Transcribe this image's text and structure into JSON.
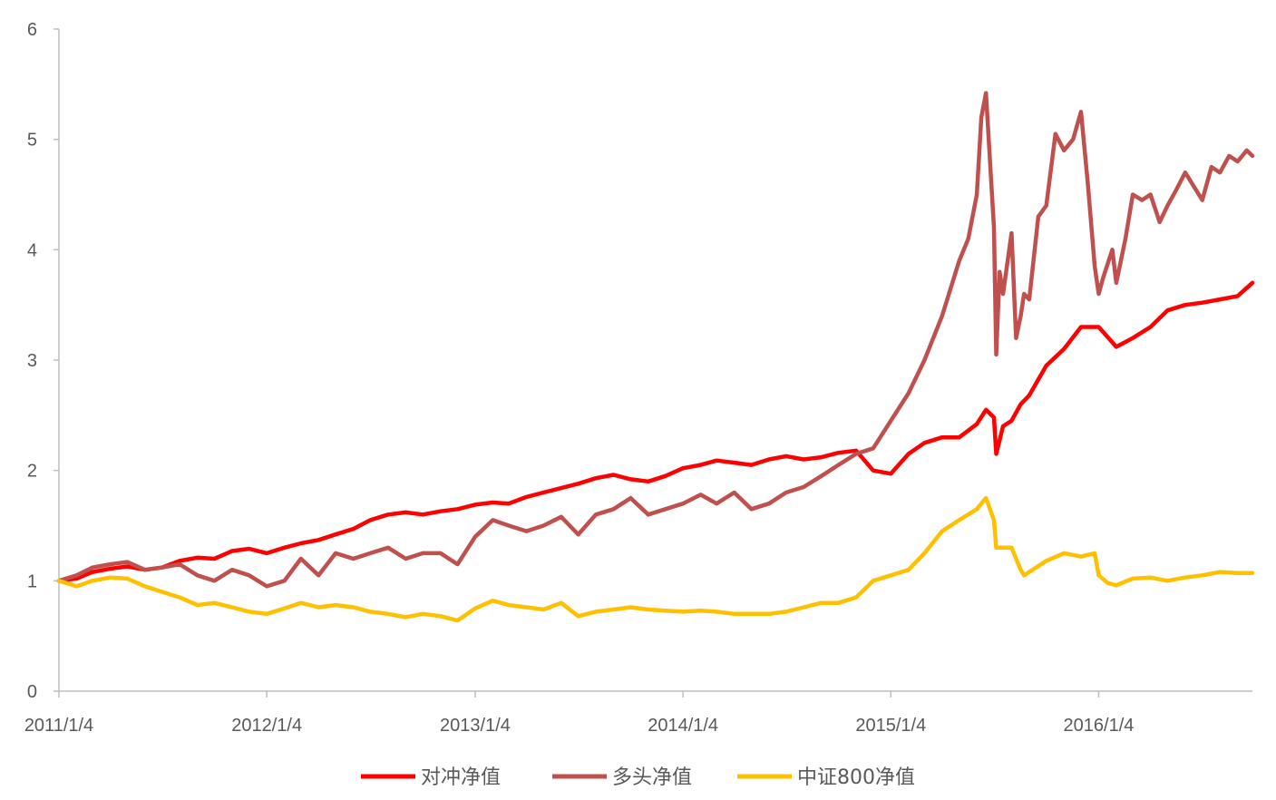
{
  "chart_data": {
    "type": "line",
    "title": "",
    "xlabel": "",
    "ylabel": "",
    "ylim": [
      0,
      6
    ],
    "yticks": [
      0,
      1,
      2,
      3,
      4,
      5,
      6
    ],
    "xlim": [
      "2011-01-04",
      "2016-09-30"
    ],
    "xtick_labels": [
      "2011/1/4",
      "2012/1/4",
      "2013/1/4",
      "2014/1/4",
      "2015/1/4",
      "2016/1/4"
    ],
    "xtick_dates": [
      "2011-01-04",
      "2012-01-04",
      "2013-01-04",
      "2014-01-04",
      "2015-01-04",
      "2016-01-04"
    ],
    "grid": false,
    "legend_position": "bottom",
    "series": [
      {
        "name": "对冲净值",
        "color": "#ff0000",
        "x": [
          "2011-01-04",
          "2011-02-04",
          "2011-03-04",
          "2011-04-04",
          "2011-05-04",
          "2011-06-04",
          "2011-07-04",
          "2011-08-04",
          "2011-09-04",
          "2011-10-04",
          "2011-11-04",
          "2011-12-04",
          "2012-01-04",
          "2012-02-04",
          "2012-03-04",
          "2012-04-04",
          "2012-05-04",
          "2012-06-04",
          "2012-07-04",
          "2012-08-04",
          "2012-09-04",
          "2012-10-04",
          "2012-11-04",
          "2012-12-04",
          "2013-01-04",
          "2013-02-04",
          "2013-03-04",
          "2013-04-04",
          "2013-05-04",
          "2013-06-04",
          "2013-07-04",
          "2013-08-04",
          "2013-09-04",
          "2013-10-04",
          "2013-11-04",
          "2013-12-04",
          "2014-01-04",
          "2014-02-04",
          "2014-03-04",
          "2014-04-04",
          "2014-05-04",
          "2014-06-04",
          "2014-07-04",
          "2014-08-04",
          "2014-09-04",
          "2014-10-04",
          "2014-11-04",
          "2014-12-04",
          "2015-01-04",
          "2015-02-04",
          "2015-03-04",
          "2015-04-04",
          "2015-05-04",
          "2015-06-04",
          "2015-06-20",
          "2015-07-04",
          "2015-07-08",
          "2015-07-20",
          "2015-08-04",
          "2015-08-20",
          "2015-09-04",
          "2015-10-04",
          "2015-11-04",
          "2015-12-04",
          "2016-01-04",
          "2016-02-04",
          "2016-03-04",
          "2016-04-04",
          "2016-05-04",
          "2016-06-04",
          "2016-07-04",
          "2016-08-04",
          "2016-09-04",
          "2016-09-30"
        ],
        "values": [
          1.0,
          1.02,
          1.08,
          1.11,
          1.13,
          1.1,
          1.12,
          1.18,
          1.21,
          1.2,
          1.27,
          1.29,
          1.25,
          1.3,
          1.34,
          1.37,
          1.42,
          1.47,
          1.55,
          1.6,
          1.62,
          1.6,
          1.63,
          1.65,
          1.69,
          1.71,
          1.7,
          1.76,
          1.8,
          1.84,
          1.88,
          1.93,
          1.96,
          1.92,
          1.9,
          1.95,
          2.02,
          2.05,
          2.09,
          2.07,
          2.05,
          2.1,
          2.13,
          2.1,
          2.12,
          2.16,
          2.18,
          2.0,
          1.97,
          2.15,
          2.25,
          2.3,
          2.3,
          2.42,
          2.55,
          2.48,
          2.15,
          2.4,
          2.45,
          2.6,
          2.68,
          2.95,
          3.1,
          3.3,
          3.3,
          3.12,
          3.2,
          3.3,
          3.45,
          3.5,
          3.52,
          3.55,
          3.58,
          3.7
        ]
      },
      {
        "name": "多头净值",
        "color": "#c0504d",
        "x": [
          "2011-01-04",
          "2011-02-04",
          "2011-03-04",
          "2011-04-04",
          "2011-05-04",
          "2011-06-04",
          "2011-07-04",
          "2011-08-04",
          "2011-09-04",
          "2011-10-04",
          "2011-11-04",
          "2011-12-04",
          "2012-01-04",
          "2012-02-04",
          "2012-03-04",
          "2012-04-04",
          "2012-05-04",
          "2012-06-04",
          "2012-07-04",
          "2012-08-04",
          "2012-09-04",
          "2012-10-04",
          "2012-11-04",
          "2012-12-04",
          "2013-01-04",
          "2013-02-04",
          "2013-03-04",
          "2013-04-04",
          "2013-05-04",
          "2013-06-04",
          "2013-07-04",
          "2013-08-04",
          "2013-09-04",
          "2013-10-04",
          "2013-11-04",
          "2013-12-04",
          "2014-01-04",
          "2014-02-04",
          "2014-03-04",
          "2014-04-04",
          "2014-05-04",
          "2014-06-04",
          "2014-07-04",
          "2014-08-04",
          "2014-09-04",
          "2014-10-04",
          "2014-11-04",
          "2014-12-04",
          "2015-01-04",
          "2015-02-04",
          "2015-03-04",
          "2015-04-04",
          "2015-05-04",
          "2015-05-20",
          "2015-06-04",
          "2015-06-12",
          "2015-06-20",
          "2015-07-04",
          "2015-07-08",
          "2015-07-14",
          "2015-07-20",
          "2015-08-04",
          "2015-08-12",
          "2015-08-20",
          "2015-08-26",
          "2015-09-04",
          "2015-09-20",
          "2015-10-04",
          "2015-10-20",
          "2015-11-04",
          "2015-11-20",
          "2015-12-04",
          "2015-12-16",
          "2015-12-28",
          "2016-01-04",
          "2016-01-12",
          "2016-01-28",
          "2016-02-04",
          "2016-02-20",
          "2016-03-04",
          "2016-03-20",
          "2016-04-04",
          "2016-04-20",
          "2016-05-04",
          "2016-05-20",
          "2016-06-04",
          "2016-07-04",
          "2016-07-20",
          "2016-08-04",
          "2016-08-20",
          "2016-09-04",
          "2016-09-20",
          "2016-09-30"
        ],
        "values": [
          1.0,
          1.05,
          1.12,
          1.15,
          1.17,
          1.1,
          1.12,
          1.15,
          1.05,
          1.0,
          1.1,
          1.05,
          0.95,
          1.0,
          1.2,
          1.05,
          1.25,
          1.2,
          1.25,
          1.3,
          1.2,
          1.25,
          1.25,
          1.15,
          1.4,
          1.55,
          1.5,
          1.45,
          1.5,
          1.58,
          1.42,
          1.6,
          1.65,
          1.75,
          1.6,
          1.65,
          1.7,
          1.78,
          1.7,
          1.8,
          1.65,
          1.7,
          1.8,
          1.85,
          1.95,
          2.05,
          2.15,
          2.2,
          2.45,
          2.7,
          3.0,
          3.4,
          3.9,
          4.1,
          4.5,
          5.2,
          5.42,
          4.2,
          3.05,
          3.8,
          3.6,
          4.15,
          3.2,
          3.4,
          3.6,
          3.55,
          4.3,
          4.4,
          5.05,
          4.9,
          5.0,
          5.25,
          4.6,
          3.85,
          3.6,
          3.75,
          4.0,
          3.7,
          4.1,
          4.5,
          4.45,
          4.5,
          4.25,
          4.4,
          4.55,
          4.7,
          4.45,
          4.75,
          4.7,
          4.85,
          4.8,
          4.9,
          4.85
        ]
      },
      {
        "name": "中证800净值",
        "color": "#ffc000",
        "x": [
          "2011-01-04",
          "2011-02-04",
          "2011-03-04",
          "2011-04-04",
          "2011-05-04",
          "2011-06-04",
          "2011-07-04",
          "2011-08-04",
          "2011-09-04",
          "2011-10-04",
          "2011-11-04",
          "2011-12-04",
          "2012-01-04",
          "2012-02-04",
          "2012-03-04",
          "2012-04-04",
          "2012-05-04",
          "2012-06-04",
          "2012-07-04",
          "2012-08-04",
          "2012-09-04",
          "2012-10-04",
          "2012-11-04",
          "2012-12-04",
          "2013-01-04",
          "2013-02-04",
          "2013-03-04",
          "2013-04-04",
          "2013-05-04",
          "2013-06-04",
          "2013-07-04",
          "2013-08-04",
          "2013-09-04",
          "2013-10-04",
          "2013-11-04",
          "2013-12-04",
          "2014-01-04",
          "2014-02-04",
          "2014-03-04",
          "2014-04-04",
          "2014-05-04",
          "2014-06-04",
          "2014-07-04",
          "2014-08-04",
          "2014-09-04",
          "2014-10-04",
          "2014-11-04",
          "2014-12-04",
          "2015-01-04",
          "2015-02-04",
          "2015-03-04",
          "2015-04-04",
          "2015-05-04",
          "2015-06-04",
          "2015-06-12",
          "2015-06-20",
          "2015-07-04",
          "2015-07-08",
          "2015-07-20",
          "2015-08-04",
          "2015-08-20",
          "2015-08-26",
          "2015-09-04",
          "2015-10-04",
          "2015-11-04",
          "2015-12-04",
          "2015-12-28",
          "2016-01-04",
          "2016-01-20",
          "2016-02-04",
          "2016-03-04",
          "2016-04-04",
          "2016-05-04",
          "2016-06-04",
          "2016-07-04",
          "2016-08-04",
          "2016-09-04",
          "2016-09-30"
        ],
        "values": [
          1.0,
          0.95,
          1.0,
          1.03,
          1.02,
          0.95,
          0.9,
          0.85,
          0.78,
          0.8,
          0.76,
          0.72,
          0.7,
          0.75,
          0.8,
          0.76,
          0.78,
          0.76,
          0.72,
          0.7,
          0.67,
          0.7,
          0.68,
          0.64,
          0.75,
          0.82,
          0.78,
          0.76,
          0.74,
          0.8,
          0.68,
          0.72,
          0.74,
          0.76,
          0.74,
          0.73,
          0.72,
          0.73,
          0.72,
          0.7,
          0.7,
          0.7,
          0.72,
          0.76,
          0.8,
          0.8,
          0.85,
          1.0,
          1.05,
          1.1,
          1.25,
          1.45,
          1.55,
          1.65,
          1.7,
          1.75,
          1.55,
          1.3,
          1.3,
          1.3,
          1.1,
          1.05,
          1.08,
          1.18,
          1.25,
          1.22,
          1.25,
          1.05,
          0.98,
          0.96,
          1.02,
          1.03,
          1.0,
          1.03,
          1.05,
          1.08,
          1.07,
          1.07
        ]
      }
    ]
  }
}
